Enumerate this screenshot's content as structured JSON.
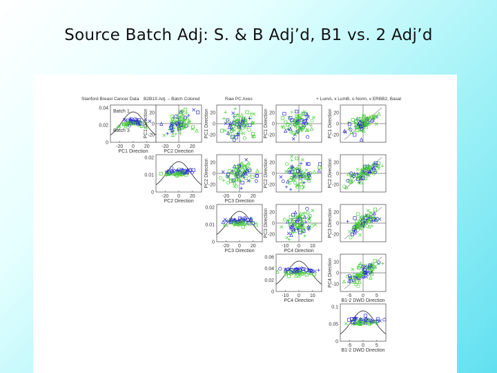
{
  "slide": {
    "title": "Source Batch Adj:  S. & B Adj’d, B1 vs. 2 Adj’d"
  },
  "chart_data": {
    "type": "scatter",
    "title": "Stanford Breast Cancer Data",
    "panel_titles": [
      "B2B1S Adj. – Batch Colored",
      "Raw PC Axes",
      "+ LumA, x LumB, o Norm, v ERBB2, Basal"
    ],
    "variables": [
      "PC1 Direction",
      "PC2 Direction",
      "PC3 Direction",
      "PC4 Direction",
      "B1-2 DWD Direction"
    ],
    "diagonal_axes": [
      {
        "xlabel": "PC1 Direction",
        "xticks": [
          "-20",
          "0",
          "20"
        ],
        "xlim": [
          -30,
          30
        ],
        "yticks": [
          "0",
          "0.02",
          "0.04"
        ],
        "ylim": [
          0,
          0.05
        ]
      },
      {
        "xlabel": "PC2 Direction",
        "xticks": [
          "-20",
          "0",
          "20"
        ],
        "xlim": [
          -30,
          30
        ],
        "yticks": [
          "0",
          "0.01",
          "0.02"
        ],
        "ylim": [
          0,
          0.03
        ]
      },
      {
        "xlabel": "PC3 Direction",
        "xticks": [
          "-20",
          "0",
          "20"
        ],
        "xlim": [
          -30,
          30
        ],
        "yticks": [
          "0",
          "0.01",
          "0.02"
        ],
        "ylim": [
          0,
          0.03
        ]
      },
      {
        "xlabel": "PC4 Direction",
        "xticks": [
          "-10",
          "0",
          "10"
        ],
        "xlim": [
          -15,
          15
        ],
        "yticks": [
          "0",
          "0.02",
          "0.04",
          "0.06"
        ],
        "ylim": [
          0,
          0.07
        ]
      },
      {
        "xlabel": "B1-2 DWD Direction",
        "xticks": [
          "-5",
          "0",
          "5"
        ],
        "xlim": [
          -8,
          8
        ],
        "yticks": [
          "0",
          "0.05",
          "0.1"
        ],
        "ylim": [
          0,
          0.12
        ]
      }
    ],
    "scatter_axes": [
      {
        "lim": [
          -30,
          30
        ],
        "ticks": [
          "-20",
          "0",
          "20"
        ]
      },
      {
        "lim": [
          -30,
          30
        ],
        "ticks": [
          "-20",
          "0",
          "20"
        ]
      },
      {
        "lim": [
          -30,
          30
        ],
        "ticks": [
          "-20",
          "0",
          "20"
        ]
      },
      {
        "lim": [
          -15,
          15
        ],
        "ticks": [
          "-10",
          "0",
          "10"
        ]
      },
      {
        "lim": [
          -8,
          8
        ],
        "ticks": [
          "-5",
          "0",
          "5"
        ]
      }
    ],
    "scatter_yticks": {
      "0": [
        "-20",
        "0",
        "20"
      ],
      "1": [
        "-20",
        "0",
        "20"
      ],
      "2": [
        "-20",
        "0",
        "20"
      ],
      "3": [
        "-10",
        "0",
        "10"
      ]
    },
    "series": [
      {
        "name": "Batch 1",
        "color": "#e03020"
      },
      {
        "name": "Batch 3",
        "color": "#2233cc"
      }
    ],
    "point_colors": {
      "batch1": "#44cc33",
      "batch2": "#2a2ad0"
    },
    "density_color": "#222222",
    "seed": 7
  }
}
